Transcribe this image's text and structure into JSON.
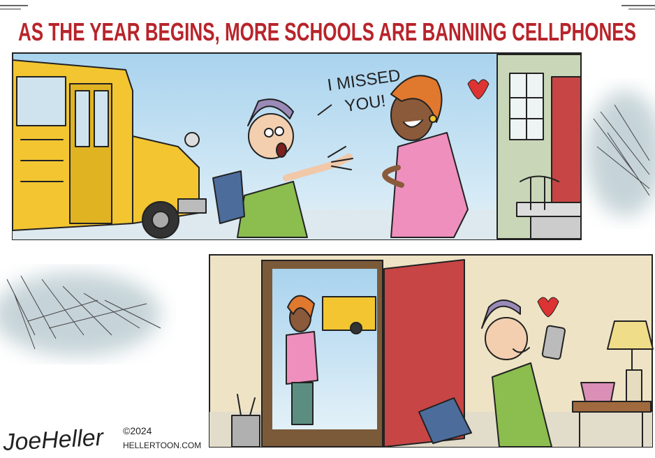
{
  "title": "AS THE YEAR BEGINS, MORE SCHOOLS ARE BANNING CELLPHONES",
  "panels": [
    {
      "speech": [
        "I MISSED",
        "YOU!"
      ]
    }
  ],
  "signature": {
    "name": "JoeHeller",
    "copyright": "©2024",
    "site": "HELLERTOON.COM"
  }
}
